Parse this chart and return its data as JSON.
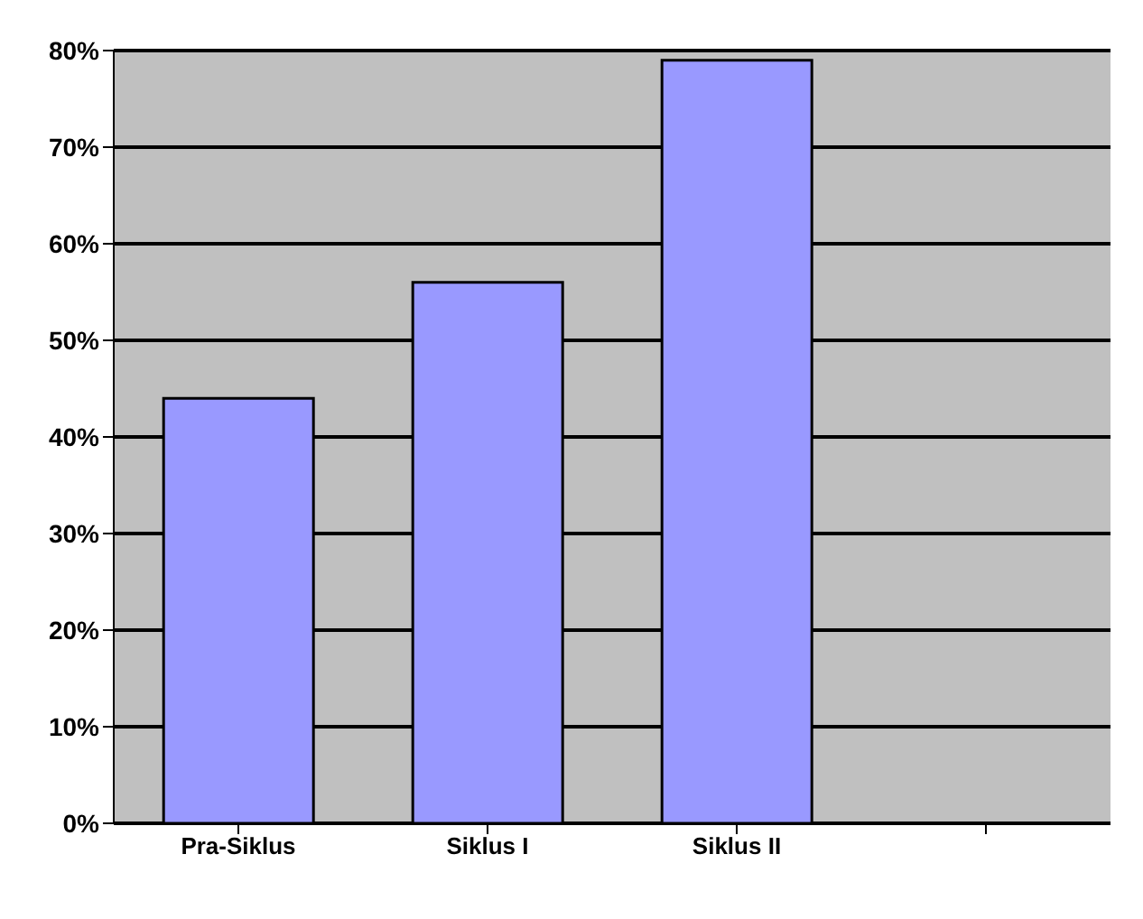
{
  "chart_data": {
    "type": "bar",
    "categories": [
      "Pra-Siklus",
      "Siklus I",
      "Siklus II",
      null
    ],
    "values": [
      44,
      56,
      79,
      null
    ],
    "color": "#9999ff",
    "ylim": [
      0,
      80
    ],
    "yticks": [
      {
        "value": 0,
        "label": "0%"
      },
      {
        "value": 10,
        "label": "10%"
      },
      {
        "value": 20,
        "label": "20%"
      },
      {
        "value": 30,
        "label": "30%"
      },
      {
        "value": 40,
        "label": "40%"
      },
      {
        "value": 50,
        "label": "50%"
      },
      {
        "value": 60,
        "label": "60%"
      },
      {
        "value": 70,
        "label": "70%"
      },
      {
        "value": 80,
        "label": "80%"
      }
    ],
    "grid": "y"
  }
}
